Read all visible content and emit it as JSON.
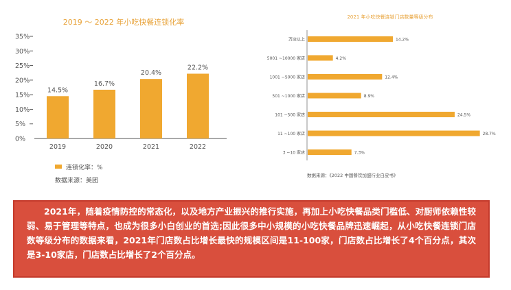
{
  "colors": {
    "bar": "#f0a830",
    "title": "#e8a33a",
    "axis": "#555555",
    "summary_bg": "#d94f3d",
    "summary_text": "#ffffff"
  },
  "chart_data": [
    {
      "type": "bar",
      "title": "2019 ～ 2022 年小吃快餐连锁化率",
      "categories": [
        "2019",
        "2020",
        "2021",
        "2022"
      ],
      "values": [
        14.5,
        16.7,
        20.4,
        22.2
      ],
      "value_labels": [
        "14.5%",
        "16.7%",
        "20.4%",
        "22.2%"
      ],
      "yticks": [
        "0%",
        "5%",
        "10%",
        "15%",
        "20%",
        "25%",
        "30%",
        "35%"
      ],
      "ylim": [
        0,
        35
      ],
      "series": [
        {
          "name": "连锁化率：%"
        }
      ],
      "legend_position": "bottom-left",
      "source": "数据来源：美团",
      "grid": false
    },
    {
      "type": "bar",
      "orientation": "horizontal",
      "title": "2021 年小吃快餐连锁门店数量等级分布",
      "categories": [
        "万店以上",
        "5001 ~10000 家店",
        "1001 ~5000 家店",
        "501 ~1000 家店",
        "101 ~500 家店",
        "11 ~100 家店",
        "3 ~10 家店"
      ],
      "values": [
        14.2,
        4.2,
        12.4,
        8.9,
        24.5,
        28.7,
        7.3
      ],
      "value_labels": [
        "14.2%",
        "4.2%",
        "12.4%",
        "8.9%",
        "24.5%",
        "28.7%",
        "7.3%"
      ],
      "xlim": [
        0,
        30
      ],
      "source": "数据来源：《2022 中国餐饮加盟行业白皮书》",
      "grid": false
    }
  ],
  "summary": {
    "text": "2021年，随着疫情防控的常态化，以及地方产业振兴的推行实施，再加上小吃快餐品类门槛低、对厨师依赖性较弱、易于管理等特点，也成为很多小白创业的首选;因此很多中小规模的小吃快餐品牌迅速崛起，从小吃快餐连锁门店数等级分布的数据来看，2021年门店数占比增长最快的规模区间是11-100家，门店数占比增长了4个百分点，其次是3-10家店，门店数占比增长了2个百分点。"
  }
}
